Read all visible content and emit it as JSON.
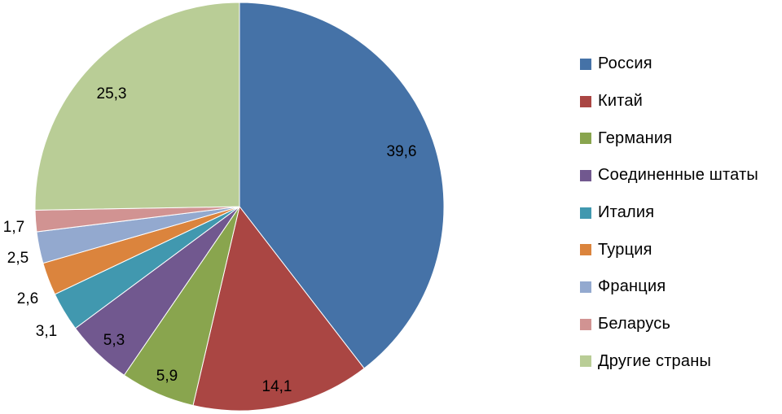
{
  "chart_data": {
    "type": "pie",
    "title": "",
    "series": [
      {
        "categories": [
          "Россия",
          "Китай",
          "Германия",
          "Соединенные штаты",
          "Италия",
          "Турция",
          "Франция",
          "Беларусь",
          "Другие страны"
        ],
        "values": [
          39.6,
          14.1,
          5.9,
          5.3,
          3.1,
          2.6,
          2.5,
          1.7,
          25.3
        ],
        "labels": [
          "39,6",
          "14,1",
          "5,9",
          "5,3",
          "3,1",
          "2,6",
          "2,5",
          "1,7",
          "25,3"
        ],
        "colors": [
          "#4572A7",
          "#AA4643",
          "#89A54E",
          "#71588F",
          "#4198AF",
          "#DB843D",
          "#93A9CF",
          "#D19392",
          "#B9CD96"
        ]
      }
    ],
    "start_angle_deg": 0,
    "direction": "clockwise",
    "legend_placement": "right",
    "data_labels": true
  }
}
